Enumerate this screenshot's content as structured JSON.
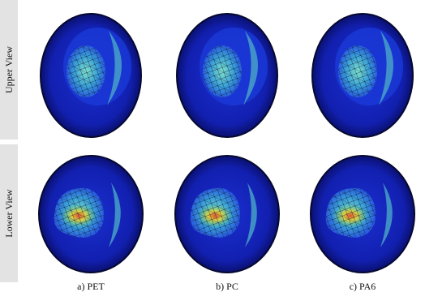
{
  "row_labels": [
    "Upper View",
    "Lower View"
  ],
  "column_labels": [
    "a) PET",
    "b) PC",
    "c) PA6"
  ]
}
